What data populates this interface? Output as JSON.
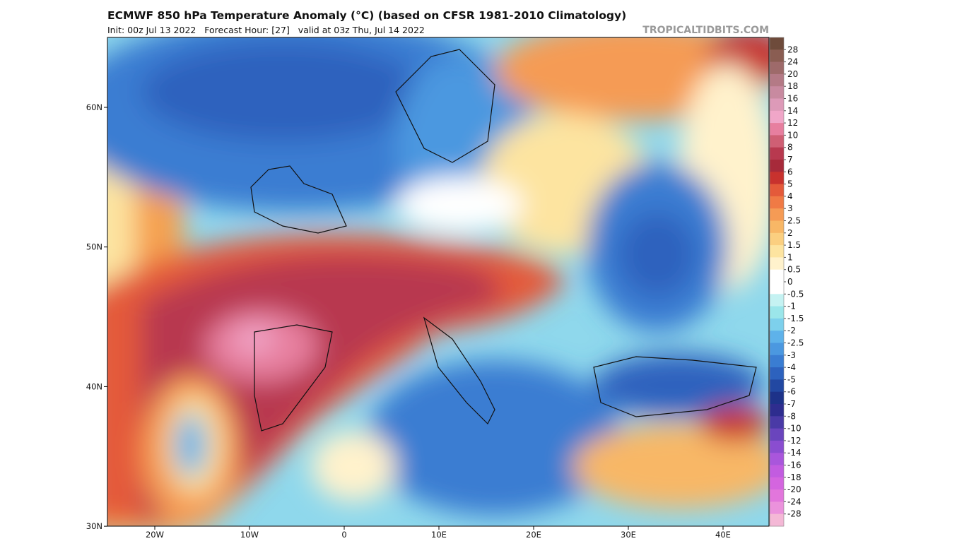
{
  "header": {
    "title": "ECMWF 850 hPa Temperature Anomaly (°C) (based on CFSR 1981-2010 Climatology)",
    "subtitle": "Init: 00z Jul 13 2022   Forecast Hour: [27]   valid at 03z Thu, Jul 14 2022",
    "credit": "TROPICALTIDBITS.COM"
  },
  "map": {
    "lat_labels": [
      "60N",
      "50N",
      "40N",
      "30N"
    ],
    "lon_labels": [
      "20W",
      "10W",
      "0",
      "10E",
      "20E",
      "30E",
      "40E"
    ]
  },
  "colorbar": {
    "levels": [
      28,
      24,
      20,
      18,
      16,
      14,
      12,
      10,
      8,
      7,
      6,
      5,
      4,
      3,
      2.5,
      2,
      1.5,
      1,
      0.5,
      0,
      -0.5,
      -1,
      -1.5,
      -2,
      -2.5,
      -3,
      -4,
      -5,
      -6,
      -7,
      -8,
      -10,
      -12,
      -14,
      -16,
      -18,
      -20,
      -24,
      -28
    ],
    "colors": [
      "#6e4b3b",
      "#8a5d52",
      "#9e6a6a",
      "#b47a86",
      "#c88aa0",
      "#dd9ab8",
      "#f0a6c8",
      "#e77f9f",
      "#cf5f74",
      "#b8394f",
      "#a72a3a",
      "#c8322e",
      "#e45a3a",
      "#f07a45",
      "#f59b55",
      "#f8b766",
      "#fbcf80",
      "#fde4a0",
      "#fff2cc",
      "#ffffff",
      "#ffffff",
      "#c5f2f2",
      "#9be6ea",
      "#7dd0ec",
      "#5eb2ea",
      "#4b98e0",
      "#3a7dd2",
      "#2d62be",
      "#2248a2",
      "#1d3289",
      "#2e2d8f",
      "#4a3aa6",
      "#6a45bd",
      "#8a4dd0",
      "#a956dc",
      "#c25ce0",
      "#d465df",
      "#e276dc",
      "#eb92dc",
      "#f4b8d6"
    ]
  }
}
